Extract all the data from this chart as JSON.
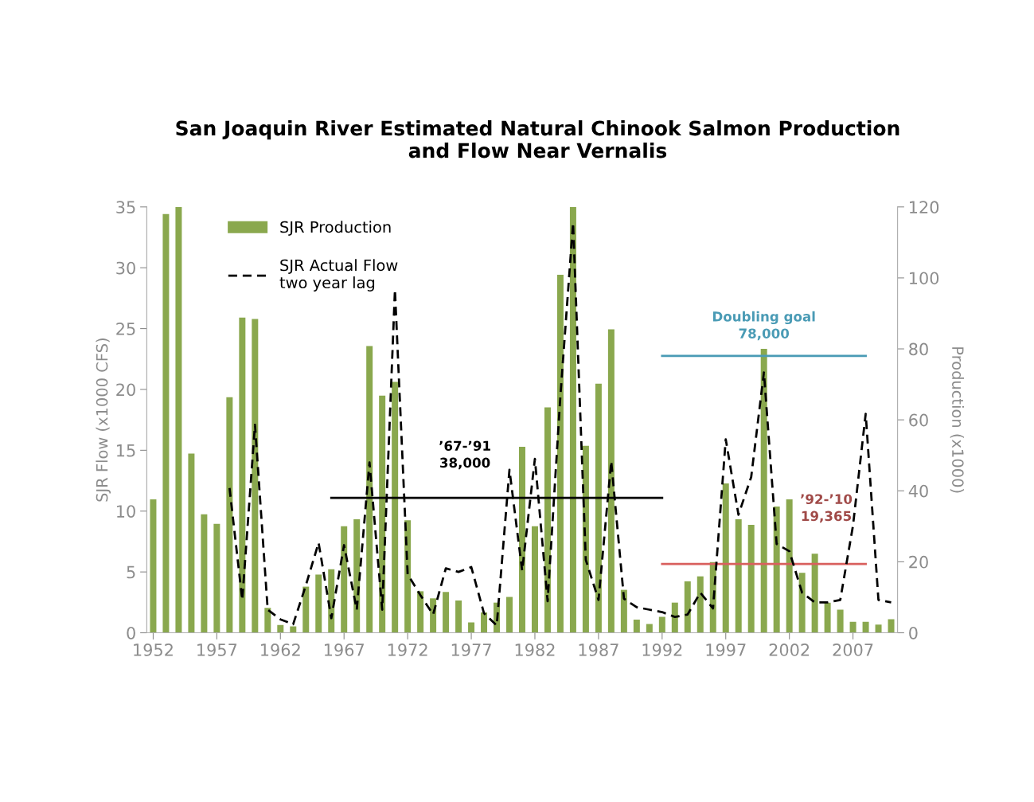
{
  "chart_data": {
    "type": "bar",
    "title": "San Joaquin River Estimated Natural Chinook Salmon Production\nand Flow Near Vernalis",
    "ylabel": "SJR Flow (x1000 CFS)",
    "y2label": "Production (x1000)",
    "x": [
      1952,
      1953,
      1954,
      1955,
      1956,
      1957,
      1958,
      1959,
      1960,
      1961,
      1962,
      1963,
      1964,
      1965,
      1966,
      1967,
      1968,
      1969,
      1970,
      1971,
      1972,
      1973,
      1974,
      1975,
      1976,
      1977,
      1978,
      1979,
      1980,
      1981,
      1982,
      1983,
      1984,
      1985,
      1986,
      1987,
      1988,
      1989,
      1990,
      1991,
      1992,
      1993,
      1994,
      1995,
      1996,
      1997,
      1998,
      1999,
      2000,
      2001,
      2002,
      2003,
      2004,
      2005,
      2006,
      2007,
      2008,
      2009,
      2010
    ],
    "series": [
      {
        "name": "SJR Production",
        "axis": "y2",
        "color": "#8aa84e",
        "values": [
          37.6,
          118,
          120,
          50.5,
          33.4,
          30.7,
          66.4,
          88.8,
          88.4,
          7,
          2.2,
          1.8,
          13,
          16.4,
          17.9,
          30,
          32,
          80.8,
          66.8,
          70.7,
          31.7,
          11.7,
          9.7,
          11.5,
          9.1,
          2.9,
          5.7,
          8.5,
          10.1,
          52.4,
          30,
          63.5,
          100.9,
          120,
          52.7,
          70.2,
          85.5,
          12.1,
          3.7,
          2.5,
          4.5,
          8.5,
          14.5,
          15.9,
          19.9,
          42.1,
          32,
          30.4,
          80,
          35.6,
          37.6,
          16.9,
          22.3,
          8.5,
          6.5,
          3.1,
          3.1,
          2.3,
          3.8
        ]
      },
      {
        "name": "SJR Actual Flow\ntwo year lag",
        "type": "line",
        "axis": "y",
        "color": "#000000",
        "line_style": "dashed",
        "x": [
          1958,
          1959,
          1960,
          1961,
          1962,
          1963,
          1964,
          1965,
          1966,
          1967,
          1968,
          1969,
          1970,
          1971,
          1972,
          1973,
          1974,
          1975,
          1976,
          1977,
          1978,
          1979,
          1980,
          1981,
          1982,
          1983,
          1984,
          1985,
          1986,
          1987,
          1988,
          1989,
          1990,
          1991,
          1992,
          1993,
          1994,
          1995,
          1996,
          1997,
          1998,
          1999,
          2000,
          2001,
          2002,
          2003,
          2004,
          2005,
          2006,
          2007,
          2008,
          2009,
          2010
        ],
        "values": [
          11.9,
          2.7,
          17.1,
          1.9,
          1.1,
          0.7,
          3.9,
          7.4,
          1.2,
          7.2,
          1.9,
          14,
          1.9,
          28.2,
          4.8,
          3.1,
          1.5,
          5.3,
          5,
          5.4,
          1.6,
          0.6,
          13.4,
          5.1,
          14.3,
          2.6,
          19.4,
          33.7,
          6,
          2.7,
          14.1,
          2.8,
          2.1,
          1.9,
          1.7,
          1.3,
          1.5,
          3.3,
          2,
          15.9,
          9.7,
          12.8,
          21.4,
          7.3,
          6.7,
          3.3,
          2.5,
          2.5,
          2.7,
          8.8,
          18,
          2.7,
          2.5
        ]
      },
      {
        "type": "line",
        "axis": "y2",
        "color": "#000000",
        "line_style": "solid",
        "x": [
          1966,
          1992
        ],
        "values": [
          38,
          38
        ]
      },
      {
        "type": "line",
        "axis": "y2",
        "color": "#4a9bb5",
        "line_style": "solid",
        "x": [
          1992,
          2008
        ],
        "values": [
          78,
          78
        ]
      },
      {
        "type": "line",
        "axis": "y2",
        "color": "#d9605e",
        "line_style": "solid",
        "x": [
          1992,
          2008
        ],
        "values": [
          19.365,
          19.365
        ]
      }
    ],
    "annotations": [
      "’67-’91\n38,000",
      "Doubling goal\n78,000",
      "’92-’10\n19,365"
    ],
    "xlim": [
      1951.5,
      2010.5
    ],
    "xticks": [
      1952,
      1957,
      1962,
      1967,
      1972,
      1977,
      1982,
      1987,
      1992,
      1997,
      2002,
      2007
    ],
    "ylim": [
      0,
      35
    ],
    "yticks": [
      0,
      5,
      10,
      15,
      20,
      25,
      30,
      35
    ],
    "y2lim": [
      0,
      120
    ],
    "y2ticks": [
      0,
      20,
      40,
      60,
      80,
      100,
      120
    ],
    "grid": false,
    "legend": "top left"
  }
}
